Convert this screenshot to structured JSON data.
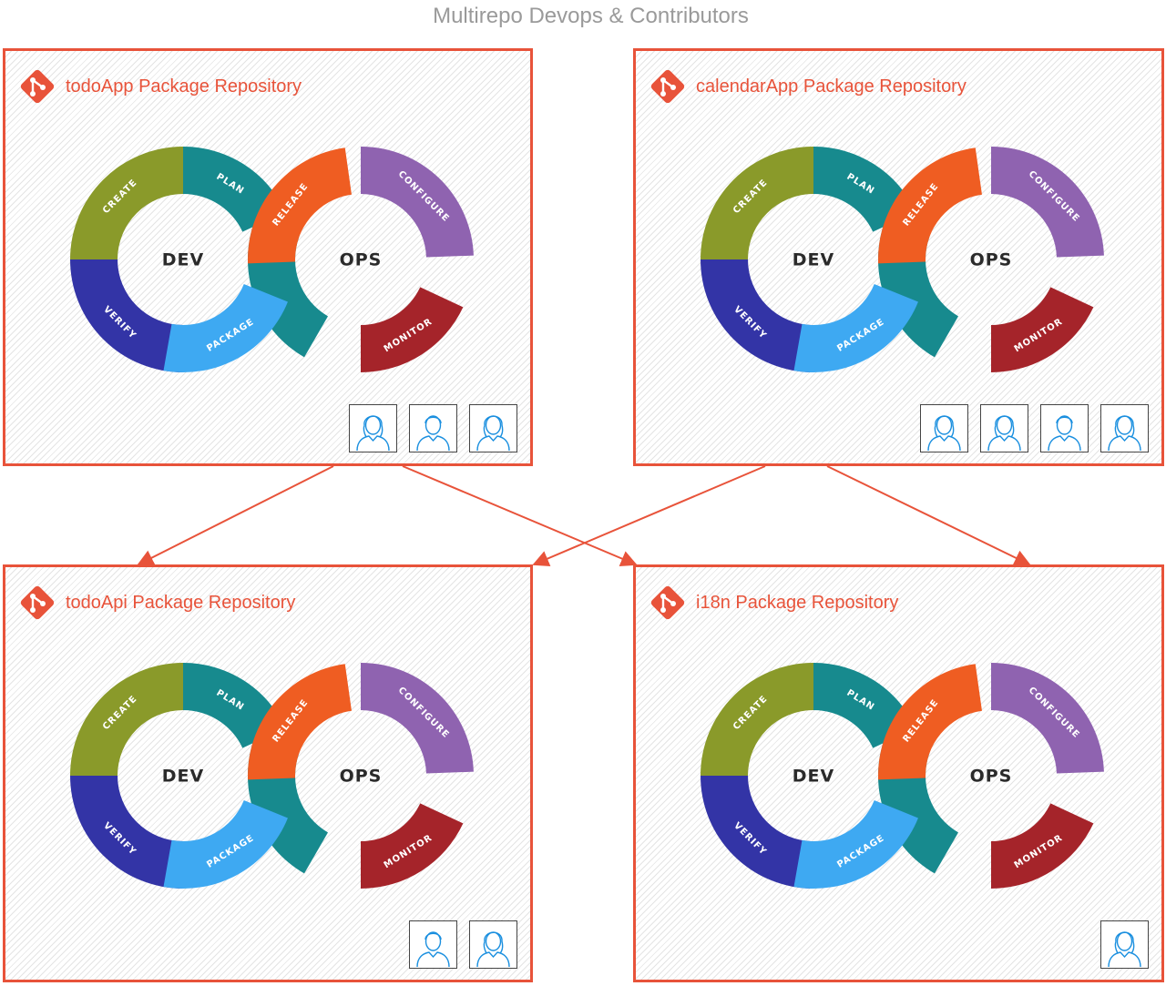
{
  "title": "Multirepo Devops & Contributors",
  "colors": {
    "accent": "#e8533a",
    "create": "#8a9a2a",
    "plan": "#178a8e",
    "verify": "#3334a6",
    "package": "#3ea9f2",
    "release": "#ef5d22",
    "configure": "#8f63b0",
    "monitor": "#a5242a",
    "ops_teal": "#178a8e"
  },
  "cycle": {
    "dev": "DEV",
    "ops": "OPS",
    "create": "CREATE",
    "plan": "PLAN",
    "verify": "VERIFY",
    "package": "PACKAGE",
    "release": "RELEASE",
    "configure": "CONFIGURE",
    "monitor": "MONITOR"
  },
  "repos": [
    {
      "title": "todoApp Package Repository",
      "contributors": [
        "user-female-icon",
        "user-male-icon",
        "user-female-icon"
      ]
    },
    {
      "title": "calendarApp Package Repository",
      "contributors": [
        "user-female-icon",
        "user-female-icon",
        "user-male-icon",
        "user-female-icon"
      ]
    },
    {
      "title": "todoApi Package Repository",
      "contributors": [
        "user-male-icon",
        "user-female-icon"
      ]
    },
    {
      "title": "i18n Package Repository",
      "contributors": [
        "user-female-icon"
      ]
    }
  ],
  "edges": [
    {
      "from": "todoApp Package Repository",
      "to": "todoApi Package Repository"
    },
    {
      "from": "todoApp Package Repository",
      "to": "i18n Package Repository"
    },
    {
      "from": "calendarApp Package Repository",
      "to": "todoApi Package Repository"
    },
    {
      "from": "calendarApp Package Repository",
      "to": "i18n Package Repository"
    }
  ]
}
